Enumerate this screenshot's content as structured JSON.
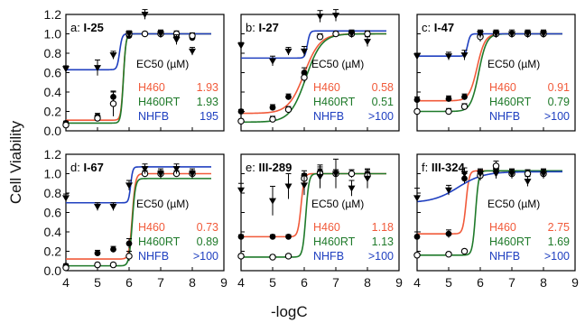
{
  "figure": {
    "ylabel": "Cell Viability",
    "xlabel": "-logC",
    "colors": {
      "H460": "#f15a3a",
      "H460RT": "#1f7a2a",
      "NHFB": "#2040c0"
    }
  },
  "chart_data": [
    {
      "type": "scatter",
      "panel": "a:",
      "title": "I-25",
      "xlim": [
        4,
        9
      ],
      "ylim": [
        0,
        1.2
      ],
      "x_ticks": [
        "4",
        "5",
        "6",
        "7",
        "8",
        "9"
      ],
      "y_ticks": [
        "0.0",
        "0.2",
        "0.4",
        "0.6",
        "0.8",
        "1.0",
        "1.2"
      ],
      "ec50_header": "EC50 (µM)",
      "series": [
        {
          "name": "H460",
          "ec50": "1.93",
          "x": [
            4,
            5,
            5.5,
            6,
            6.5,
            7,
            7.5,
            8
          ],
          "y": [
            0.08,
            0.15,
            0.35,
            0.98,
            1.0,
            1.0,
            0.97,
            0.96
          ],
          "err": [
            0.02,
            0.03,
            0.05,
            0.03,
            0.02,
            0.03,
            0.03,
            0.03
          ]
        },
        {
          "name": "H460RT",
          "ec50": "1.93",
          "x": [
            4,
            5,
            5.5,
            6,
            6.5,
            7,
            7.5,
            8
          ],
          "y": [
            0.06,
            0.13,
            0.28,
            1.0,
            1.0,
            1.0,
            1.0,
            0.98
          ],
          "err": [
            0.02,
            0.03,
            0.13,
            0.03,
            0.02,
            0.03,
            0.03,
            0.03
          ]
        },
        {
          "name": "NHFB",
          "ec50": "195",
          "x": [
            4,
            5,
            5.5,
            6,
            6.5,
            7,
            7.5,
            8
          ],
          "y": [
            0.64,
            0.65,
            0.78,
            1.0,
            1.2,
            1.0,
            0.94,
            0.82
          ],
          "err": [
            0.03,
            0.08,
            0.04,
            0.03,
            0.05,
            0.04,
            0.05,
            0.04
          ]
        }
      ],
      "fits": [
        {
          "name": "H460",
          "bottom": 0.11,
          "top": 1.0,
          "center": 5.82,
          "slope": 25
        },
        {
          "name": "H460RT",
          "bottom": 0.08,
          "top": 1.0,
          "center": 5.82,
          "slope": 25
        },
        {
          "name": "NHFB",
          "bottom": 0.63,
          "top": 1.0,
          "center": 5.7,
          "slope": 25
        }
      ]
    },
    {
      "type": "scatter",
      "panel": "b:",
      "title": "I-27",
      "xlim": [
        4,
        9
      ],
      "ylim": [
        0,
        1.2
      ],
      "x_ticks": [
        "4",
        "5",
        "6",
        "7",
        "8",
        "9"
      ],
      "y_ticks": [
        "0.0",
        "0.2",
        "0.4",
        "0.6",
        "0.8",
        "1.0",
        "1.2"
      ],
      "ec50_header": "EC50 (µM)",
      "series": [
        {
          "name": "H460",
          "ec50": "0.58",
          "x": [
            4,
            5,
            5.5,
            6,
            6.5,
            7,
            7.5,
            8
          ],
          "y": [
            0.2,
            0.24,
            0.35,
            0.6,
            0.97,
            1.0,
            1.0,
            1.0
          ],
          "err": [
            0.02,
            0.03,
            0.03,
            0.05,
            0.03,
            0.02,
            0.03,
            0.03
          ]
        },
        {
          "name": "H460RT",
          "ec50": "0.51",
          "x": [
            4,
            5,
            5.5,
            6,
            6.5,
            7,
            7.5,
            8
          ],
          "y": [
            0.1,
            0.12,
            0.22,
            0.55,
            0.97,
            1.0,
            1.0,
            1.0
          ],
          "err": [
            0.02,
            0.03,
            0.03,
            0.05,
            0.03,
            0.02,
            0.03,
            0.03
          ]
        },
        {
          "name": "NHFB",
          "ec50": ">100",
          "x": [
            4,
            5,
            5.5,
            6,
            6.5,
            7,
            7.5,
            8
          ],
          "y": [
            0.88,
            0.72,
            0.82,
            0.82,
            1.18,
            1.19,
            1.0,
            0.92
          ],
          "err": [
            0.03,
            0.05,
            0.04,
            0.05,
            0.06,
            0.06,
            0.04,
            0.05
          ]
        }
      ],
      "fits": [
        {
          "name": "H460",
          "bottom": 0.18,
          "top": 1.0,
          "center": 6.0,
          "slope": 4
        },
        {
          "name": "H460RT",
          "bottom": 0.09,
          "top": 1.0,
          "center": 6.05,
          "slope": 4
        },
        {
          "name": "NHFB",
          "bottom": 0.75,
          "top": 1.03,
          "center": 6.1,
          "slope": 25
        }
      ]
    },
    {
      "type": "scatter",
      "panel": "c:",
      "title": "I-47",
      "xlim": [
        4,
        9
      ],
      "ylim": [
        0,
        1.2
      ],
      "x_ticks": [
        "4",
        "5",
        "6",
        "7",
        "8",
        "9"
      ],
      "y_ticks": [
        "0.0",
        "0.2",
        "0.4",
        "0.6",
        "0.8",
        "1.0",
        "1.2"
      ],
      "ec50_header": "EC50 (µM)",
      "series": [
        {
          "name": "H460",
          "ec50": "0.91",
          "x": [
            4,
            5,
            5.5,
            6,
            6.5,
            7,
            7.5,
            8
          ],
          "y": [
            0.32,
            0.33,
            0.35,
            0.98,
            1.0,
            1.0,
            1.0,
            1.0
          ],
          "err": [
            0.03,
            0.03,
            0.03,
            0.05,
            0.03,
            0.02,
            0.03,
            0.03
          ]
        },
        {
          "name": "H460RT",
          "ec50": "0.79",
          "x": [
            4,
            5,
            5.5,
            6,
            6.5,
            7,
            7.5,
            8
          ],
          "y": [
            0.2,
            0.2,
            0.25,
            0.97,
            1.0,
            1.0,
            1.0,
            1.0
          ],
          "err": [
            0.02,
            0.03,
            0.03,
            0.05,
            0.03,
            0.02,
            0.03,
            0.03
          ]
        },
        {
          "name": "NHFB",
          "ec50": ">100",
          "x": [
            4,
            5,
            5.5,
            6,
            6.5,
            7,
            7.5,
            8
          ],
          "y": [
            0.77,
            0.77,
            0.78,
            1.0,
            1.0,
            1.0,
            1.0,
            1.0
          ],
          "err": [
            0.03,
            0.04,
            0.05,
            0.04,
            0.04,
            0.04,
            0.04,
            0.04
          ]
        }
      ],
      "fits": [
        {
          "name": "H460",
          "bottom": 0.31,
          "top": 1.0,
          "center": 5.9,
          "slope": 8
        },
        {
          "name": "H460RT",
          "bottom": 0.2,
          "top": 1.0,
          "center": 5.95,
          "slope": 8
        },
        {
          "name": "NHFB",
          "bottom": 0.77,
          "top": 1.0,
          "center": 5.6,
          "slope": 25
        }
      ]
    },
    {
      "type": "scatter",
      "panel": "d:",
      "title": "I-67",
      "xlim": [
        4,
        9
      ],
      "ylim": [
        0,
        1.2
      ],
      "x_ticks": [
        "4",
        "5",
        "6",
        "7",
        "8",
        "9"
      ],
      "y_ticks": [
        "0.0",
        "0.2",
        "0.4",
        "0.6",
        "0.8",
        "1.0",
        "1.2"
      ],
      "ec50_header": "EC50 (µM)",
      "series": [
        {
          "name": "H460",
          "ec50": "0.73",
          "x": [
            4,
            5,
            5.5,
            6,
            6.5,
            7,
            7.5,
            8
          ],
          "y": [
            0.05,
            0.18,
            0.22,
            0.28,
            1.0,
            1.0,
            1.0,
            1.0
          ],
          "err": [
            0.02,
            0.03,
            0.03,
            0.05,
            0.03,
            0.03,
            0.03,
            0.03
          ]
        },
        {
          "name": "H460RT",
          "ec50": "0.89",
          "x": [
            4,
            5,
            5.5,
            6,
            6.5,
            7,
            7.5,
            8
          ],
          "y": [
            0.03,
            0.06,
            0.06,
            0.15,
            1.0,
            1.0,
            1.0,
            1.0
          ],
          "err": [
            0.02,
            0.02,
            0.02,
            0.05,
            0.03,
            0.03,
            0.03,
            0.03
          ]
        },
        {
          "name": "NHFB",
          "ec50": ">100",
          "x": [
            4,
            5,
            5.5,
            6,
            6.5,
            7,
            7.5,
            8
          ],
          "y": [
            0.75,
            0.66,
            0.66,
            0.88,
            1.05,
            1.0,
            1.05,
            1.0
          ],
          "err": [
            0.04,
            0.04,
            0.04,
            0.05,
            0.05,
            0.05,
            0.05,
            0.05
          ]
        }
      ],
      "fits": [
        {
          "name": "H460",
          "bottom": 0.12,
          "top": 1.0,
          "center": 6.1,
          "slope": 20
        },
        {
          "name": "H460RT",
          "bottom": 0.05,
          "top": 0.95,
          "center": 6.1,
          "slope": 20
        },
        {
          "name": "NHFB",
          "bottom": 0.7,
          "top": 1.07,
          "center": 6.05,
          "slope": 30
        }
      ]
    },
    {
      "type": "scatter",
      "panel": "e:",
      "title": "III-289",
      "xlim": [
        4,
        9
      ],
      "ylim": [
        0,
        1.2
      ],
      "x_ticks": [
        "4",
        "5",
        "6",
        "7",
        "8",
        "9"
      ],
      "y_ticks": [
        "0.0",
        "0.2",
        "0.4",
        "0.6",
        "0.8",
        "1.0",
        "1.2"
      ],
      "ec50_header": "EC50 (µM)",
      "series": [
        {
          "name": "H460",
          "ec50": "1.18",
          "x": [
            4,
            5,
            5.5,
            6,
            6.5,
            7,
            7.5,
            8
          ],
          "y": [
            0.35,
            0.35,
            0.35,
            0.98,
            1.02,
            1.0,
            1.0,
            1.0
          ],
          "err": [
            0.02,
            0.02,
            0.02,
            0.05,
            0.05,
            0.04,
            0.04,
            0.04
          ]
        },
        {
          "name": "H460RT",
          "ec50": "1.13",
          "x": [
            4,
            5,
            5.5,
            6,
            6.5,
            7,
            7.5,
            8
          ],
          "y": [
            0.15,
            0.14,
            0.15,
            0.95,
            1.0,
            1.0,
            1.0,
            0.98
          ],
          "err": [
            0.02,
            0.02,
            0.02,
            0.05,
            0.05,
            0.04,
            0.04,
            0.04
          ]
        },
        {
          "name": "NHFB",
          "ec50": ">100",
          "x": [
            4,
            5,
            5.5,
            6,
            6.5,
            7,
            7.5,
            8
          ],
          "y": [
            0.83,
            0.72,
            0.87,
            0.88,
            0.97,
            1.0,
            0.85,
            0.95
          ],
          "err": [
            0.07,
            0.15,
            0.13,
            0.1,
            0.12,
            0.15,
            0.08,
            0.1
          ]
        }
      ],
      "fits": [
        {
          "name": "H460",
          "bottom": 0.35,
          "top": 1.0,
          "center": 5.9,
          "slope": 20
        },
        {
          "name": "H460RT",
          "bottom": 0.14,
          "top": 1.0,
          "center": 6.05,
          "slope": 20
        }
      ]
    },
    {
      "type": "scatter",
      "panel": "f:",
      "title": "III-324",
      "xlim": [
        4,
        9
      ],
      "ylim": [
        0,
        1.2
      ],
      "x_ticks": [
        "4",
        "5",
        "6",
        "7",
        "8",
        "9"
      ],
      "y_ticks": [
        "0.0",
        "0.2",
        "0.4",
        "0.6",
        "0.8",
        "1.0",
        "1.2"
      ],
      "ec50_header": "EC50 (µM)",
      "series": [
        {
          "name": "H460",
          "ec50": "2.75",
          "x": [
            4,
            5,
            5.5,
            6,
            6.5,
            7,
            7.5,
            8
          ],
          "y": [
            0.35,
            0.38,
            0.95,
            1.0,
            1.05,
            1.0,
            1.0,
            1.0
          ],
          "err": [
            0.05,
            0.04,
            0.05,
            0.04,
            0.04,
            0.04,
            0.04,
            0.04
          ]
        },
        {
          "name": "H460RT",
          "ec50": "1.69",
          "x": [
            4,
            5,
            5.5,
            6,
            6.5,
            7,
            7.5,
            8
          ],
          "y": [
            0.16,
            0.17,
            0.2,
            0.98,
            1.08,
            1.0,
            1.0,
            1.0
          ],
          "err": [
            0.02,
            0.02,
            0.02,
            0.05,
            0.05,
            0.04,
            0.04,
            0.04
          ]
        },
        {
          "name": "NHFB",
          "ec50": ">100",
          "x": [
            4,
            5,
            5.5,
            6,
            6.5,
            7,
            7.5,
            8
          ],
          "y": [
            0.75,
            0.83,
            1.0,
            1.0,
            1.0,
            1.0,
            0.92,
            1.0
          ],
          "err": [
            0.1,
            0.05,
            0.06,
            0.05,
            0.05,
            0.05,
            0.05,
            0.05
          ]
        }
      ],
      "fits": [
        {
          "name": "H460",
          "bottom": 0.38,
          "top": 1.03,
          "center": 5.55,
          "slope": 20
        },
        {
          "name": "H460RT",
          "bottom": 0.16,
          "top": 1.03,
          "center": 5.85,
          "slope": 20
        },
        {
          "name": "NHFB",
          "bottom": 0.7,
          "top": 1.02,
          "center": 5.3,
          "slope": 2.5
        }
      ]
    }
  ]
}
